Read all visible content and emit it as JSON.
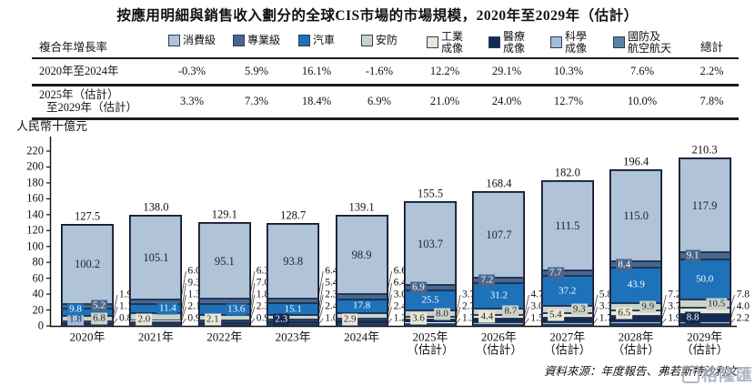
{
  "title": "按應用明細與銷售收入劃分的全球CIS市場的市場規模，2020年至2029年（估計）",
  "unit_label": "人民幣十億元",
  "source": "資料來源：年度報告、弗若斯特沙利文",
  "watermark": {
    "text": "格隆匯"
  },
  "table": {
    "header_label": "複合年增長率",
    "total_label": "總計",
    "rows": [
      {
        "label_lines": [
          "2020年至2024年"
        ],
        "values": [
          "-0.3%",
          "5.9%",
          "16.1%",
          "-1.6%",
          "12.2%",
          "29.1%",
          "10.3%",
          "7.6%",
          "2.2%"
        ]
      },
      {
        "label_lines": [
          "2025年（估計）",
          "至2029年（估計）"
        ],
        "values": [
          "3.3%",
          "7.3%",
          "18.4%",
          "6.9%",
          "21.0%",
          "24.0%",
          "12.7%",
          "10.0%",
          "7.8%"
        ]
      }
    ]
  },
  "chart_data": {
    "type": "bar",
    "subtype": "stacked",
    "title": "按應用明細與銷售收入劃分的全球CIS市場的市場規模，2020年至2029年（估計）",
    "ylabel": "人民幣十億元",
    "ylim": [
      0,
      220
    ],
    "ytick_step": 20,
    "grid": false,
    "legend_position": "top",
    "categories": [
      "2020年",
      "2021年",
      "2022年",
      "2023年",
      "2024年",
      "2025年",
      "2026年",
      "2027年",
      "2028年",
      "2029年"
    ],
    "category_notes": [
      "",
      "",
      "",
      "",
      "",
      "（估計）",
      "（估計）",
      "（估計）",
      "（估計）",
      "（估計）"
    ],
    "series": [
      {
        "name": "消費級",
        "color": "#b0c3d7",
        "values": [
          100.2,
          105.1,
          95.1,
          93.8,
          98.9,
          103.7,
          107.7,
          111.5,
          115.0,
          117.9
        ]
      },
      {
        "name": "專業級",
        "color": "#49678c",
        "values": [
          5.2,
          6.0,
          6.3,
          6.4,
          6.6,
          6.9,
          7.2,
          7.7,
          8.4,
          9.1
        ]
      },
      {
        "name": "汽車",
        "color": "#1d72ba",
        "values": [
          9.8,
          11.4,
          13.6,
          15.1,
          17.8,
          25.5,
          31.2,
          37.2,
          43.9,
          50.0
        ]
      },
      {
        "name": "安防",
        "color": "#cbd3c8",
        "values": [
          6.8,
          9.3,
          7.0,
          5.4,
          6.4,
          8.0,
          8.7,
          9.3,
          9.9,
          10.5
        ]
      },
      {
        "name": "工業成像",
        "color": "#eae7d4",
        "values": [
          1.9,
          2.0,
          2.1,
          2.3,
          2.9,
          3.6,
          4.4,
          5.4,
          6.5,
          7.8
        ]
      },
      {
        "name": "醫療成像",
        "color": "#152a52",
        "values": [
          1.1,
          1.3,
          1.8,
          2.3,
          3.0,
          3.7,
          4.7,
          5.8,
          7.2,
          8.8
        ]
      },
      {
        "name": "科學成像",
        "color": "#a4bdd8",
        "values": [
          1.8,
          2.1,
          2.3,
          2.4,
          2.4,
          2.7,
          3.0,
          3.3,
          3.7,
          4.0
        ]
      },
      {
        "name": "國防及航空航天",
        "color": "#5d80a7",
        "values": [
          0.8,
          0.9,
          0.9,
          1.0,
          1.2,
          1.3,
          1.5,
          1.7,
          1.9,
          2.2
        ]
      }
    ],
    "totals": [
      127.5,
      138.0,
      129.1,
      128.7,
      139.1,
      155.5,
      168.4,
      182.0,
      196.4,
      210.3
    ]
  }
}
